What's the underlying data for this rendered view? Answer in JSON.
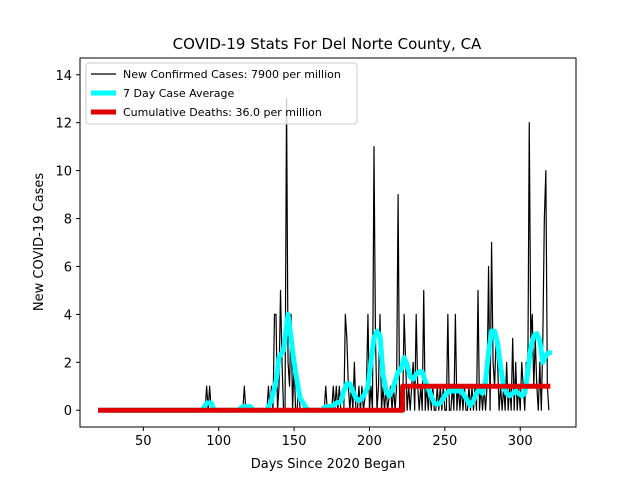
{
  "chart_data": {
    "type": "line",
    "title": "COVID-19 Stats For Del Norte County, CA",
    "xlabel": "Days Since 2020 Began",
    "ylabel": "New COVID-19 Cases",
    "xlim": [
      8,
      337
    ],
    "ylim": [
      -0.7,
      14.7
    ],
    "xticks": [
      50,
      100,
      150,
      200,
      250,
      300
    ],
    "yticks": [
      0,
      2,
      4,
      6,
      8,
      10,
      12,
      14
    ],
    "grid": false,
    "legend_position": "top-left",
    "series": [
      {
        "name": "New Confirmed Cases: 7900 per million",
        "color": "#000000",
        "points": [
          [
            20,
            0
          ],
          [
            91,
            0
          ],
          [
            92,
            1
          ],
          [
            93,
            0
          ],
          [
            94,
            1
          ],
          [
            95,
            0
          ],
          [
            116,
            0
          ],
          [
            117,
            1
          ],
          [
            118,
            0
          ],
          [
            132,
            0
          ],
          [
            133,
            1
          ],
          [
            134,
            0
          ],
          [
            135,
            1
          ],
          [
            136,
            0
          ],
          [
            137,
            4
          ],
          [
            138,
            4
          ],
          [
            139,
            0
          ],
          [
            140,
            1
          ],
          [
            141,
            5
          ],
          [
            142,
            2
          ],
          [
            143,
            0
          ],
          [
            144,
            0
          ],
          [
            145,
            13
          ],
          [
            146,
            2
          ],
          [
            147,
            1
          ],
          [
            148,
            4
          ],
          [
            149,
            0
          ],
          [
            150,
            2
          ],
          [
            151,
            0
          ],
          [
            152,
            0
          ],
          [
            153,
            1
          ],
          [
            154,
            0
          ],
          [
            155,
            0
          ],
          [
            170,
            0
          ],
          [
            171,
            1
          ],
          [
            172,
            0
          ],
          [
            175,
            0
          ],
          [
            176,
            1
          ],
          [
            177,
            0
          ],
          [
            178,
            1
          ],
          [
            179,
            0
          ],
          [
            180,
            1
          ],
          [
            181,
            0
          ],
          [
            183,
            0
          ],
          [
            184,
            4
          ],
          [
            185,
            3
          ],
          [
            186,
            1
          ],
          [
            187,
            0
          ],
          [
            188,
            1
          ],
          [
            189,
            0
          ],
          [
            190,
            2
          ],
          [
            191,
            0
          ],
          [
            192,
            0
          ],
          [
            193,
            1
          ],
          [
            194,
            0
          ],
          [
            195,
            1
          ],
          [
            196,
            0
          ],
          [
            198,
            1
          ],
          [
            199,
            4
          ],
          [
            200,
            0
          ],
          [
            201,
            1
          ],
          [
            202,
            0
          ],
          [
            203,
            11
          ],
          [
            204,
            3
          ],
          [
            205,
            0
          ],
          [
            206,
            1
          ],
          [
            207,
            4
          ],
          [
            208,
            0
          ],
          [
            209,
            1
          ],
          [
            210,
            0
          ],
          [
            211,
            1
          ],
          [
            212,
            0
          ],
          [
            214,
            1
          ],
          [
            215,
            0
          ],
          [
            216,
            1
          ],
          [
            217,
            0
          ],
          [
            218,
            1
          ],
          [
            219,
            9
          ],
          [
            220,
            0
          ],
          [
            221,
            1
          ],
          [
            222,
            0
          ],
          [
            223,
            4
          ],
          [
            224,
            2
          ],
          [
            225,
            0
          ],
          [
            226,
            1
          ],
          [
            227,
            0
          ],
          [
            228,
            1
          ],
          [
            229,
            2
          ],
          [
            230,
            0
          ],
          [
            231,
            4
          ],
          [
            232,
            1
          ],
          [
            233,
            0
          ],
          [
            234,
            1
          ],
          [
            235,
            0
          ],
          [
            236,
            5
          ],
          [
            237,
            0
          ],
          [
            238,
            1
          ],
          [
            239,
            0
          ],
          [
            240,
            1
          ],
          [
            241,
            0
          ],
          [
            242,
            1
          ],
          [
            243,
            0
          ],
          [
            244,
            0
          ],
          [
            245,
            1
          ],
          [
            246,
            0
          ],
          [
            247,
            1
          ],
          [
            248,
            0
          ],
          [
            249,
            1
          ],
          [
            250,
            0
          ],
          [
            251,
            0
          ],
          [
            252,
            4
          ],
          [
            253,
            0
          ],
          [
            254,
            0
          ],
          [
            255,
            1
          ],
          [
            256,
            0
          ],
          [
            257,
            4
          ],
          [
            258,
            0
          ],
          [
            259,
            1
          ],
          [
            260,
            0
          ],
          [
            261,
            1
          ],
          [
            262,
            0
          ],
          [
            263,
            1
          ],
          [
            264,
            0
          ],
          [
            265,
            0
          ],
          [
            266,
            1
          ],
          [
            267,
            0
          ],
          [
            268,
            1
          ],
          [
            269,
            0
          ],
          [
            270,
            1
          ],
          [
            271,
            0
          ],
          [
            272,
            5
          ],
          [
            273,
            0
          ],
          [
            274,
            1
          ],
          [
            275,
            0
          ],
          [
            276,
            1
          ],
          [
            277,
            0
          ],
          [
            278,
            1
          ],
          [
            279,
            6
          ],
          [
            280,
            0
          ],
          [
            281,
            7
          ],
          [
            282,
            2
          ],
          [
            283,
            1
          ],
          [
            284,
            3
          ],
          [
            285,
            2
          ],
          [
            286,
            0
          ],
          [
            287,
            1
          ],
          [
            288,
            0
          ],
          [
            289,
            1
          ],
          [
            290,
            0
          ],
          [
            291,
            2
          ],
          [
            292,
            0
          ],
          [
            293,
            1
          ],
          [
            294,
            0
          ],
          [
            295,
            3
          ],
          [
            296,
            0
          ],
          [
            297,
            2
          ],
          [
            298,
            0
          ],
          [
            299,
            1
          ],
          [
            300,
            0
          ],
          [
            301,
            2
          ],
          [
            302,
            1
          ],
          [
            303,
            0
          ],
          [
            304,
            2
          ],
          [
            305,
            1
          ],
          [
            306,
            12
          ],
          [
            307,
            3
          ],
          [
            308,
            4
          ],
          [
            309,
            1
          ],
          [
            310,
            3
          ],
          [
            311,
            1
          ],
          [
            312,
            0
          ],
          [
            313,
            2
          ],
          [
            314,
            0
          ],
          [
            315,
            3
          ],
          [
            316,
            8
          ],
          [
            317,
            10
          ],
          [
            318,
            1
          ],
          [
            319,
            0
          ]
        ]
      },
      {
        "name": "7 Day Case Average",
        "color": "#00ffff",
        "points": [
          [
            20,
            0
          ],
          [
            89,
            0
          ],
          [
            92,
            0.3
          ],
          [
            95,
            0.3
          ],
          [
            97,
            0
          ],
          [
            113,
            0
          ],
          [
            116,
            0.15
          ],
          [
            121,
            0.15
          ],
          [
            123,
            0
          ],
          [
            132,
            0
          ],
          [
            135,
            0.4
          ],
          [
            138,
            1.2
          ],
          [
            140,
            2.2
          ],
          [
            143,
            2.5
          ],
          [
            145,
            3.5
          ],
          [
            146,
            4
          ],
          [
            148,
            3.0
          ],
          [
            150,
            2.0
          ],
          [
            152,
            1.2
          ],
          [
            154,
            0.5
          ],
          [
            156,
            0.3
          ],
          [
            158,
            0.1
          ],
          [
            160,
            0
          ],
          [
            168,
            0
          ],
          [
            171,
            0.15
          ],
          [
            175,
            0.15
          ],
          [
            178,
            0.3
          ],
          [
            181,
            0.35
          ],
          [
            183,
            0.8
          ],
          [
            185,
            1.1
          ],
          [
            187,
            1.1
          ],
          [
            189,
            0.8
          ],
          [
            191,
            0.5
          ],
          [
            193,
            0.4
          ],
          [
            195,
            0.5
          ],
          [
            197,
            0.7
          ],
          [
            199,
            1.0
          ],
          [
            201,
            2.0
          ],
          [
            203,
            3.0
          ],
          [
            205,
            3.3
          ],
          [
            207,
            3.1
          ],
          [
            209,
            1.5
          ],
          [
            211,
            0.8
          ],
          [
            213,
            0.6
          ],
          [
            215,
            0.8
          ],
          [
            217,
            1.2
          ],
          [
            219,
            1.6
          ],
          [
            221,
            1.7
          ],
          [
            223,
            2.2
          ],
          [
            225,
            1.9
          ],
          [
            227,
            1.4
          ],
          [
            229,
            1.3
          ],
          [
            231,
            1.5
          ],
          [
            233,
            1.6
          ],
          [
            235,
            1.6
          ],
          [
            237,
            1.2
          ],
          [
            239,
            0.9
          ],
          [
            241,
            0.6
          ],
          [
            243,
            0.3
          ],
          [
            245,
            0.25
          ],
          [
            247,
            0.3
          ],
          [
            249,
            0.5
          ],
          [
            251,
            0.7
          ],
          [
            253,
            0.8
          ],
          [
            255,
            0.8
          ],
          [
            257,
            0.8
          ],
          [
            259,
            0.8
          ],
          [
            261,
            0.8
          ],
          [
            263,
            0.6
          ],
          [
            265,
            0.4
          ],
          [
            267,
            0.2
          ],
          [
            269,
            0.4
          ],
          [
            271,
            0.7
          ],
          [
            273,
            0.9
          ],
          [
            275,
            0.7
          ],
          [
            277,
            1.2
          ],
          [
            279,
            2.4
          ],
          [
            281,
            3.3
          ],
          [
            283,
            3.3
          ],
          [
            285,
            2.8
          ],
          [
            287,
            1.8
          ],
          [
            289,
            1.0
          ],
          [
            291,
            0.7
          ],
          [
            293,
            0.6
          ],
          [
            295,
            0.7
          ],
          [
            297,
            0.8
          ],
          [
            299,
            0.7
          ],
          [
            301,
            0.6
          ],
          [
            303,
            0.7
          ],
          [
            305,
            1.6
          ],
          [
            307,
            2.6
          ],
          [
            309,
            3.1
          ],
          [
            311,
            3.2
          ],
          [
            313,
            2.9
          ],
          [
            315,
            2.0
          ],
          [
            317,
            2.3
          ],
          [
            319,
            2.4
          ],
          [
            321,
            2.4
          ]
        ]
      },
      {
        "name": "Cumulative Deaths: 36.0 per million",
        "color": "#e00000",
        "points": [
          [
            20,
            0
          ],
          [
            222,
            0
          ],
          [
            222,
            1
          ],
          [
            320,
            1
          ]
        ]
      }
    ]
  }
}
